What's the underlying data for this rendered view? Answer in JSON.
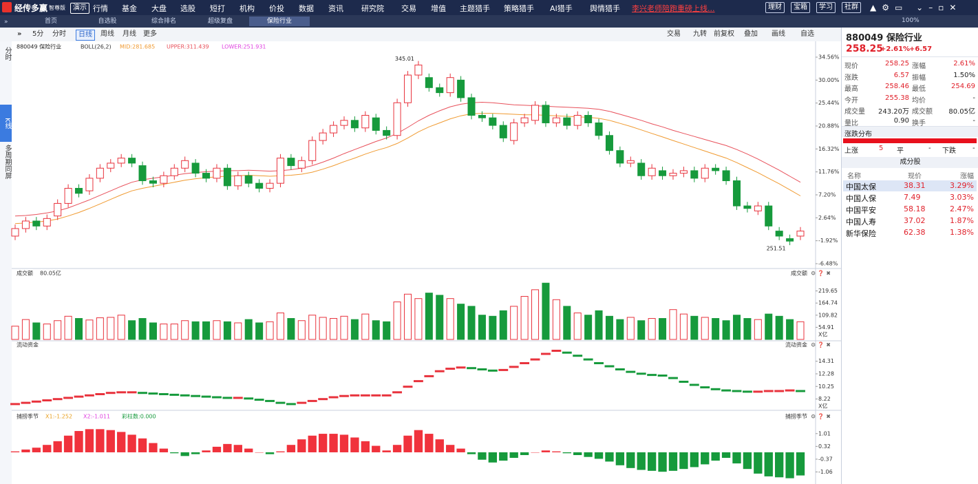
{
  "menu": {
    "logo": "经传多赢",
    "edition": "智尊版",
    "demo": "演示",
    "items": [
      "行情",
      "基金",
      "大盘",
      "选股",
      "短打",
      "机构",
      "价投",
      "数据",
      "资讯",
      "研究院",
      "交易",
      "增值",
      "主题猎手",
      "策略猎手",
      "AI猎手",
      "舆情猎手"
    ],
    "promo": "李兴老师陪跑重磅上线...",
    "buttons": [
      "理财",
      "宝箱",
      "学习",
      "社群"
    ],
    "zoom": "100%"
  },
  "tabs": [
    "首页",
    "自选股",
    "综合排名",
    "超级复盘",
    "保险行业"
  ],
  "toolbar": {
    "left": [
      "5分",
      "分时",
      "日线",
      "周线",
      "月线",
      "更多"
    ],
    "right": [
      "交易",
      "九转",
      "前复权",
      "叠加",
      "画线",
      "自选"
    ]
  },
  "sidebar": [
    "分时",
    "K线",
    "多周期同屏"
  ],
  "quote": {
    "code": "880049",
    "name": "保险行业",
    "price": "258.25",
    "change_pct": "+2.61%",
    "change": "+6.57",
    "rows": [
      [
        "现价",
        "258.25",
        "涨幅",
        "2.61%"
      ],
      [
        "涨跌",
        "6.57",
        "振幅",
        "1.50%"
      ],
      [
        "最高",
        "258.46",
        "最低",
        "254.69"
      ],
      [
        "今开",
        "255.38",
        "均价",
        "-"
      ],
      [
        "成交量",
        "243.20万",
        "成交额",
        "80.05亿"
      ],
      [
        "量比",
        "0.90",
        "换手",
        "-"
      ]
    ],
    "colors": [
      [
        "#e0202a",
        "#e0202a"
      ],
      [
        "#e0202a",
        "#222222"
      ],
      [
        "#e0202a",
        "#e0202a"
      ],
      [
        "#e0202a",
        "#222222"
      ],
      [
        "#222222",
        "#222222"
      ],
      [
        "#222222",
        "#222222"
      ]
    ],
    "distribution_title": "涨跌分布",
    "distribution": [
      "上涨",
      "5",
      "平",
      "-",
      "下跌",
      "-"
    ],
    "components_title": "成分股",
    "components_header": [
      "名称",
      "现价",
      "涨幅"
    ],
    "components": [
      [
        "中国太保",
        "38.31",
        "3.29%"
      ],
      [
        "中国人保",
        "7.49",
        "3.03%"
      ],
      [
        "中国平安",
        "58.18",
        "2.47%"
      ],
      [
        "中国人寿",
        "37.02",
        "1.87%"
      ],
      [
        "新华保险",
        "62.38",
        "1.38%"
      ]
    ]
  },
  "chart_data": [
    {
      "type": "candlestick",
      "title": "880049 保险行业",
      "indicator": "BOLL(26,2)",
      "lower_label": "LOWER:251.931",
      "high_label": "345.01",
      "low_label": "251.51",
      "up_color": "#e8323c",
      "down_color": "#169a3c",
      "open": [
        -1.0,
        0.5,
        2.0,
        1.0,
        3.0,
        5.5,
        8.5,
        8.0,
        10.5,
        12.5,
        13.5,
        14.5,
        13.0,
        10.0,
        9.5,
        11.0,
        12.5,
        13.5,
        11.5,
        10.5,
        12.5,
        9.0,
        11.0,
        9.5,
        8.5,
        9.5,
        14.5,
        12.5,
        14.0,
        18.0,
        19.5,
        21.0,
        22.0,
        20.5,
        22.5,
        20.0,
        19.0,
        25.5,
        31.0,
        30.5,
        28.5,
        27.5,
        30.0,
        26.5,
        23.0,
        22.5,
        21.0,
        18.0,
        21.5,
        22.0,
        25.0,
        21.5,
        22.5,
        21.0,
        23.0,
        21.5,
        19.0,
        16.0,
        13.5,
        13.5,
        11.0,
        12.0,
        11.0,
        11.5,
        12.0,
        10.5,
        12.5,
        12.0,
        10.0,
        5.0,
        4.0,
        5.0,
        0.0,
        -1.5,
        -1.0
      ],
      "close": [
        0.5,
        2.0,
        1.0,
        2.5,
        5.5,
        8.5,
        7.5,
        10.5,
        12.5,
        13.5,
        14.5,
        13.5,
        10.0,
        9.5,
        11.0,
        12.5,
        14.0,
        11.5,
        10.5,
        12.5,
        9.0,
        11.0,
        9.5,
        8.5,
        9.5,
        14.5,
        13.0,
        14.0,
        18.0,
        19.5,
        21.0,
        22.0,
        20.5,
        23.0,
        20.0,
        19.0,
        25.5,
        31.0,
        33.0,
        28.5,
        27.5,
        30.5,
        26.5,
        23.0,
        22.5,
        21.0,
        18.5,
        21.5,
        22.5,
        25.0,
        21.5,
        22.5,
        21.0,
        23.0,
        21.5,
        19.0,
        16.0,
        13.5,
        14.0,
        11.0,
        12.5,
        11.0,
        11.5,
        12.0,
        10.5,
        12.5,
        12.0,
        10.0,
        5.0,
        4.5,
        5.0,
        1.0,
        -1.0,
        -2.0,
        0.0
      ],
      "high": [
        1.3,
        2.8,
        2.8,
        3.3,
        6.3,
        9.3,
        9.3,
        11.3,
        13.3,
        14.3,
        15.3,
        15.3,
        13.8,
        10.8,
        11.8,
        13.3,
        14.8,
        14.3,
        12.3,
        13.3,
        13.3,
        11.8,
        11.8,
        10.3,
        10.3,
        15.3,
        15.3,
        14.8,
        18.8,
        20.3,
        21.8,
        22.8,
        22.8,
        23.8,
        23.3,
        20.8,
        26.3,
        31.8,
        33.8,
        31.3,
        29.3,
        31.3,
        30.8,
        27.3,
        23.8,
        23.3,
        21.8,
        22.3,
        23.3,
        25.8,
        25.8,
        23.3,
        23.3,
        23.8,
        23.8,
        22.3,
        19.8,
        16.8,
        14.8,
        14.3,
        13.3,
        12.8,
        12.3,
        12.8,
        12.8,
        13.3,
        13.3,
        12.8,
        10.8,
        5.8,
        5.8,
        5.8,
        0.8,
        -0.7,
        0.8
      ],
      "low": [
        -1.8,
        -0.3,
        0.2,
        0.2,
        2.2,
        4.7,
        6.7,
        7.2,
        9.7,
        11.7,
        12.7,
        12.7,
        9.2,
        8.7,
        8.7,
        10.2,
        11.7,
        10.7,
        9.7,
        9.7,
        8.2,
        8.2,
        8.7,
        7.7,
        7.7,
        8.7,
        12.2,
        11.7,
        13.2,
        17.2,
        18.7,
        20.2,
        19.7,
        19.7,
        19.2,
        18.2,
        18.2,
        24.7,
        30.2,
        27.7,
        26.7,
        26.7,
        25.7,
        22.2,
        21.7,
        20.2,
        17.7,
        17.2,
        20.7,
        21.2,
        20.7,
        20.7,
        20.2,
        20.2,
        20.7,
        18.2,
        15.2,
        12.7,
        12.7,
        10.2,
        10.2,
        10.2,
        10.2,
        10.7,
        9.7,
        9.7,
        11.2,
        9.2,
        4.2,
        3.7,
        3.2,
        0.2,
        -1.8,
        -2.8,
        -1.8
      ],
      "series": [
        {
          "name": "MID:281.685",
          "color": "#f09a30",
          "values": [
            1.5,
            1.6,
            1.8,
            2.0,
            2.4,
            3.0,
            3.7,
            4.5,
            5.4,
            6.3,
            7.2,
            8.0,
            8.5,
            8.9,
            9.3,
            9.7,
            10.1,
            10.4,
            10.6,
            10.8,
            10.9,
            11.0,
            11.1,
            11.0,
            10.9,
            11.0,
            11.1,
            11.3,
            11.7,
            12.3,
            13.0,
            13.8,
            14.5,
            15.3,
            16.0,
            16.6,
            17.4,
            18.5,
            19.7,
            20.7,
            21.5,
            22.3,
            22.9,
            23.3,
            23.4,
            23.4,
            23.3,
            23.2,
            23.1,
            23.1,
            23.0,
            22.9,
            22.8,
            22.7,
            22.6,
            22.4,
            22.0,
            21.4,
            20.8,
            20.1,
            19.4,
            18.7,
            18.0,
            17.3,
            16.6,
            15.9,
            15.2,
            14.5,
            13.6,
            12.6,
            11.6,
            10.5,
            9.4,
            8.2,
            7.0
          ]
        },
        {
          "name": "UPPER:311.439",
          "color": "#e8505a",
          "values": [
            3.0,
            3.1,
            3.3,
            3.6,
            4.0,
            4.6,
            5.4,
            6.2,
            7.1,
            8.0,
            8.9,
            9.7,
            10.2,
            10.5,
            10.8,
            11.1,
            11.4,
            11.6,
            11.8,
            11.9,
            12.0,
            12.0,
            12.1,
            12.0,
            11.9,
            12.0,
            12.2,
            12.5,
            13.0,
            13.7,
            14.5,
            15.4,
            16.2,
            17.0,
            17.8,
            18.5,
            19.4,
            20.6,
            21.9,
            23.0,
            23.9,
            24.7,
            25.2,
            25.5,
            25.6,
            25.5,
            25.3,
            25.1,
            25.0,
            24.9,
            24.8,
            24.7,
            24.6,
            24.5,
            24.4,
            24.2,
            23.8,
            23.2,
            22.6,
            22.0,
            21.3,
            20.7,
            20.0,
            19.4,
            18.8,
            18.2,
            17.6,
            17.0,
            16.2,
            15.3,
            14.3,
            13.2,
            12.1,
            10.9,
            9.7
          ]
        }
      ],
      "ylim": [
        -6.48,
        34.56
      ],
      "yticks": [
        {
          "value": 34.56,
          "label": "34.56%"
        },
        {
          "value": 30.0,
          "label": "30.00%"
        },
        {
          "value": 25.44,
          "label": "25.44%"
        },
        {
          "value": 20.88,
          "label": "20.88%"
        },
        {
          "value": 16.32,
          "label": "16.32%"
        },
        {
          "value": 11.76,
          "label": "11.76%"
        },
        {
          "value": 7.2,
          "label": "7.20%"
        },
        {
          "value": 2.64,
          "label": "2.64%"
        },
        {
          "value": -1.92,
          "label": "-1.92%"
        },
        {
          "value": -6.48,
          "label": "-6.48%"
        }
      ],
      "grid": false
    },
    {
      "type": "bar",
      "title": "成交额",
      "value_text": "80.05亿",
      "unit": "X亿",
      "values": [
        60,
        90,
        75,
        70,
        85,
        105,
        95,
        88,
        98,
        100,
        110,
        85,
        95,
        75,
        70,
        70,
        85,
        80,
        80,
        85,
        80,
        75,
        90,
        75,
        80,
        120,
        95,
        85,
        110,
        100,
        95,
        105,
        90,
        115,
        85,
        80,
        170,
        205,
        185,
        210,
        200,
        185,
        160,
        150,
        110,
        105,
        130,
        150,
        195,
        225,
        255,
        180,
        150,
        120,
        110,
        130,
        105,
        90,
        100,
        85,
        95,
        95,
        135,
        115,
        105,
        100,
        95,
        85,
        110,
        95,
        90,
        115,
        105,
        90,
        80.05
      ],
      "ylim": [
        0,
        290
      ],
      "yticks": [
        54.91,
        109.82,
        164.74,
        219.65
      ],
      "grid": false
    },
    {
      "type": "step",
      "title": "流动资金",
      "unit": "X亿",
      "up_color": "#e8323c",
      "down_color": "#169a3c",
      "values": [
        7.4,
        7.6,
        7.8,
        8.0,
        8.2,
        8.4,
        8.6,
        8.8,
        9.0,
        9.2,
        9.3,
        9.3,
        9.2,
        9.1,
        9.0,
        8.9,
        8.8,
        8.7,
        8.6,
        8.5,
        8.4,
        8.4,
        8.3,
        8.1,
        7.9,
        7.6,
        7.4,
        7.6,
        7.9,
        8.2,
        8.5,
        8.7,
        8.8,
        8.8,
        8.8,
        8.8,
        9.3,
        10.2,
        11.1,
        11.9,
        12.7,
        13.1,
        13.3,
        13.2,
        13.0,
        12.8,
        12.9,
        13.4,
        14.0,
        14.6,
        15.5,
        16.0,
        15.7,
        15.2,
        14.6,
        14.0,
        13.5,
        13.0,
        12.6,
        12.3,
        12.1,
        12.0,
        11.6,
        11.0,
        10.5,
        10.1,
        9.8,
        9.6,
        9.5,
        9.4,
        9.4,
        9.5,
        9.5,
        9.6,
        9.5
      ],
      "ylim": [
        6.5,
        16.5
      ],
      "yticks": [
        8.22,
        10.25,
        12.28,
        14.31
      ],
      "grid": false
    },
    {
      "type": "signed-bar",
      "title": "捕捞季节",
      "legend": [
        {
          "text": "X1:-1.252",
          "color": "#e8a020"
        },
        {
          "text": "X2:-1.011",
          "color": "#e040e0"
        },
        {
          "text": "彩柱数:0.000",
          "color": "#169a3c"
        }
      ],
      "up_color": "#f0323c",
      "down_color": "#169a3c",
      "values": [
        0.05,
        0.15,
        0.25,
        0.4,
        0.6,
        0.9,
        1.15,
        1.25,
        1.25,
        1.2,
        1.1,
        0.95,
        0.75,
        0.5,
        0.2,
        -0.05,
        -0.2,
        -0.1,
        0.1,
        0.3,
        0.45,
        0.4,
        0.2,
        0.0,
        -0.1,
        0.05,
        0.4,
        0.7,
        0.9,
        1.0,
        1.0,
        0.95,
        0.8,
        0.6,
        0.35,
        0.1,
        0.4,
        0.9,
        1.2,
        1.0,
        0.7,
        0.4,
        0.2,
        -0.1,
        -0.4,
        -0.55,
        -0.45,
        -0.3,
        -0.15,
        0.0,
        0.1,
        0.05,
        -0.05,
        -0.15,
        -0.25,
        -0.35,
        -0.5,
        -0.7,
        -0.85,
        -0.95,
        -1.0,
        -1.05,
        -1.0,
        -0.9,
        -0.8,
        -0.65,
        -0.45,
        -0.3,
        -0.6,
        -0.9,
        -1.15,
        -1.3,
        -1.35,
        -1.4,
        -1.25
      ],
      "ylim": [
        -1.6,
        1.3
      ],
      "yticks": [
        -1.06,
        -0.37,
        0.32,
        1.01
      ],
      "grid": false
    }
  ]
}
